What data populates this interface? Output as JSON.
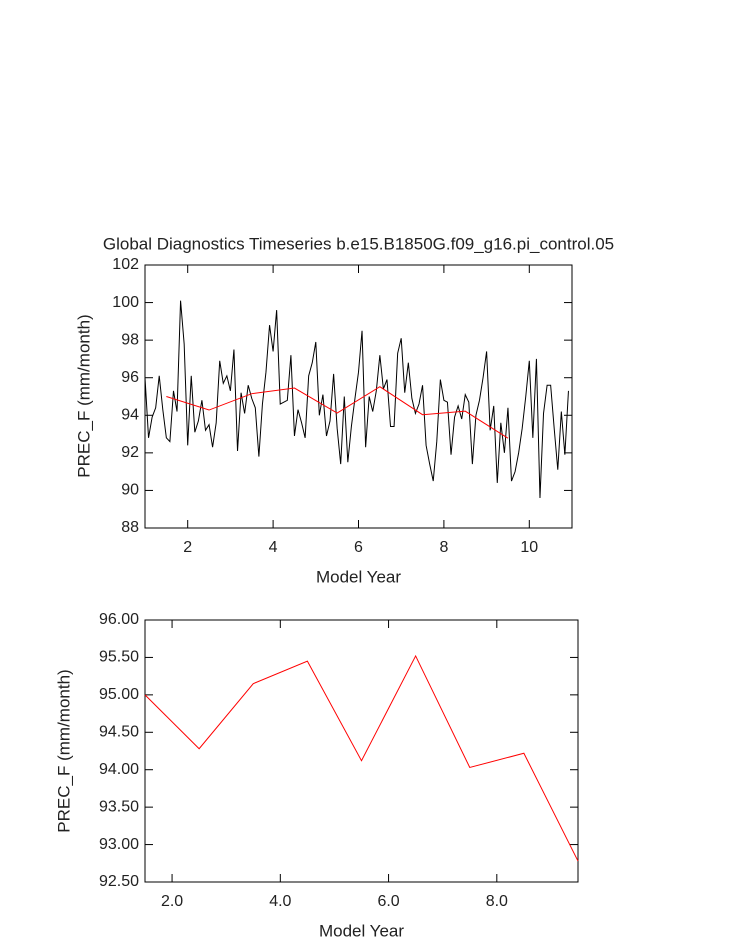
{
  "chart_data": [
    {
      "type": "line",
      "title": "Global Diagnostics Timeseries b.e15.B1850G.f09_g16.pi_control.05",
      "xlabel": "Model Year",
      "ylabel": "PREC_F (mm/month)",
      "xlim": [
        1,
        11
      ],
      "ylim": [
        88,
        102
      ],
      "xticks": [
        2,
        4,
        6,
        8,
        10
      ],
      "yticks": [
        88,
        90,
        92,
        94,
        96,
        98,
        100,
        102
      ],
      "grid": false,
      "series": [
        {
          "color": "#000000",
          "x": [
            1.0,
            1.083,
            1.167,
            1.25,
            1.333,
            1.417,
            1.5,
            1.583,
            1.667,
            1.75,
            1.833,
            1.917,
            2.0,
            2.083,
            2.167,
            2.25,
            2.333,
            2.417,
            2.5,
            2.583,
            2.667,
            2.75,
            2.833,
            2.917,
            3.0,
            3.083,
            3.167,
            3.25,
            3.333,
            3.417,
            3.5,
            3.583,
            3.667,
            3.75,
            3.833,
            3.917,
            4.0,
            4.083,
            4.167,
            4.25,
            4.333,
            4.417,
            4.5,
            4.583,
            4.667,
            4.75,
            4.833,
            4.917,
            5.0,
            5.083,
            5.167,
            5.25,
            5.333,
            5.417,
            5.5,
            5.583,
            5.667,
            5.75,
            5.833,
            5.917,
            6.0,
            6.083,
            6.167,
            6.25,
            6.333,
            6.417,
            6.5,
            6.583,
            6.667,
            6.75,
            6.833,
            6.917,
            7.0,
            7.083,
            7.167,
            7.25,
            7.333,
            7.417,
            7.5,
            7.583,
            7.667,
            7.75,
            7.833,
            7.917,
            8.0,
            8.083,
            8.167,
            8.25,
            8.333,
            8.417,
            8.5,
            8.583,
            8.667,
            8.75,
            8.833,
            8.917,
            9.0,
            9.083,
            9.167,
            9.25,
            9.333,
            9.417,
            9.5,
            9.583,
            9.667,
            9.75,
            9.833,
            9.917,
            10.0,
            10.083,
            10.167,
            10.25,
            10.333,
            10.417,
            10.5,
            10.583,
            10.667,
            10.75,
            10.833,
            10.917
          ],
          "values": [
            96.0,
            92.8,
            93.9,
            94.4,
            96.1,
            94.3,
            92.8,
            92.6,
            95.3,
            94.2,
            100.1,
            97.8,
            92.4,
            96.1,
            93.1,
            93.7,
            94.8,
            93.2,
            93.5,
            92.3,
            93.6,
            96.9,
            95.7,
            96.1,
            95.3,
            97.5,
            92.1,
            95.2,
            94.1,
            95.6,
            94.9,
            94.4,
            91.8,
            94.6,
            96.3,
            98.8,
            97.4,
            99.6,
            94.6,
            94.7,
            94.8,
            97.2,
            92.9,
            94.3,
            93.6,
            92.8,
            96.1,
            96.8,
            97.9,
            94.0,
            95.1,
            92.9,
            93.7,
            96.2,
            93.3,
            91.4,
            95.0,
            91.5,
            93.4,
            94.9,
            96.3,
            98.5,
            92.3,
            95.0,
            94.2,
            95.3,
            97.2,
            95.4,
            95.9,
            93.4,
            93.4,
            97.3,
            98.1,
            95.2,
            96.8,
            94.9,
            94.1,
            94.6,
            95.6,
            92.4,
            91.4,
            90.5,
            92.6,
            95.9,
            94.8,
            94.7,
            91.9,
            93.9,
            94.5,
            93.8,
            95.1,
            94.7,
            91.4,
            94.0,
            94.8,
            96.0,
            97.4,
            93.2,
            94.5,
            90.4,
            93.6,
            92.0,
            94.4,
            90.5,
            91.0,
            92.0,
            93.3,
            95.0,
            96.9,
            92.8,
            97.0,
            89.6,
            94.1,
            95.6,
            95.6,
            93.3,
            91.1,
            94.2,
            91.9,
            95.3
          ]
        },
        {
          "color": "#ff0000",
          "x": [
            1.5,
            2.5,
            3.5,
            4.5,
            5.5,
            6.5,
            7.5,
            8.5,
            9.5
          ],
          "values": [
            95.0,
            94.28,
            95.15,
            95.45,
            94.12,
            95.52,
            94.03,
            94.22,
            92.78
          ]
        }
      ]
    },
    {
      "type": "line",
      "xlabel": "Model Year",
      "ylabel": "PREC_F (mm/month)",
      "xlim": [
        1.5,
        9.5
      ],
      "ylim": [
        92.5,
        96
      ],
      "xticks": [
        {
          "value": 2,
          "label": "2.0"
        },
        {
          "value": 4,
          "label": "4.0"
        },
        {
          "value": 6,
          "label": "6.0"
        },
        {
          "value": 8,
          "label": "8.0"
        }
      ],
      "yticks": [
        {
          "value": 92.5,
          "label": "92.50"
        },
        {
          "value": 93,
          "label": "93.00"
        },
        {
          "value": 93.5,
          "label": "93.50"
        },
        {
          "value": 94,
          "label": "94.00"
        },
        {
          "value": 94.5,
          "label": "94.50"
        },
        {
          "value": 95,
          "label": "95.00"
        },
        {
          "value": 95.5,
          "label": "95.50"
        },
        {
          "value": 96,
          "label": "96.00"
        }
      ],
      "grid": false,
      "series": [
        {
          "color": "#ff0000",
          "x": [
            1.5,
            2.5,
            3.5,
            4.5,
            5.5,
            6.5,
            7.5,
            8.5,
            9.5
          ],
          "values": [
            95.0,
            94.28,
            95.15,
            95.45,
            94.12,
            95.52,
            94.03,
            94.22,
            92.78
          ]
        }
      ]
    }
  ]
}
